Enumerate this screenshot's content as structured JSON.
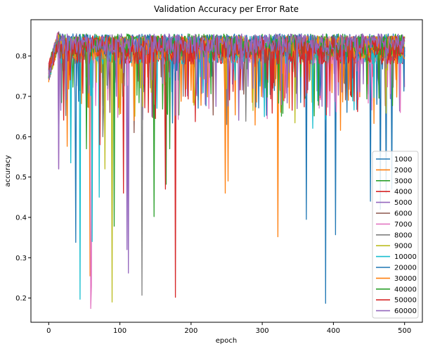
{
  "chart_data": {
    "type": "line",
    "title": "Validation Accuracy per Error Rate",
    "xlabel": "epoch",
    "ylabel": "accuracy",
    "xlim": [
      -25,
      525
    ],
    "ylim": [
      0.14,
      0.89
    ],
    "xticks": [
      0,
      100,
      200,
      300,
      400,
      500
    ],
    "yticks": [
      0.2,
      0.3,
      0.4,
      0.5,
      0.6,
      0.7,
      0.8
    ],
    "grid": false,
    "legend_position": "lower-right",
    "epochs": 500,
    "series": [
      {
        "name": "1000",
        "color": "#1f77b4",
        "base": 0.83,
        "noise": 0.025,
        "dips": [
          [
            362,
            0.395
          ],
          [
            389,
            0.187
          ],
          [
            403,
            0.357
          ],
          [
            452,
            0.44
          ],
          [
            466,
            0.42
          ],
          [
            474,
            0.46
          ],
          [
            482,
            0.47
          ]
        ]
      },
      {
        "name": "2000",
        "color": "#ff7f0e",
        "base": 0.815,
        "noise": 0.035,
        "dips": [
          [
            58,
            0.255
          ],
          [
            248,
            0.46
          ],
          [
            252,
            0.465
          ],
          [
            322,
            0.352
          ],
          [
            252,
            0.49
          ]
        ]
      },
      {
        "name": "3000",
        "color": "#2ca02c",
        "base": 0.825,
        "noise": 0.03,
        "dips": [
          [
            148,
            0.402
          ],
          [
            165,
            0.482
          ],
          [
            170,
            0.57
          ]
        ]
      },
      {
        "name": "4000",
        "color": "#d62728",
        "base": 0.815,
        "noise": 0.035,
        "dips": [
          [
            178,
            0.202
          ],
          [
            105,
            0.46
          ],
          [
            164,
            0.47
          ]
        ]
      },
      {
        "name": "5000",
        "color": "#9467bd",
        "base": 0.825,
        "noise": 0.03,
        "dips": [
          [
            110,
            0.32
          ],
          [
            112,
            0.262
          ],
          [
            145,
            0.65
          ]
        ]
      },
      {
        "name": "6000",
        "color": "#8c564b",
        "base": 0.82,
        "noise": 0.03,
        "dips": [
          [
            86,
            0.66
          ],
          [
            120,
            0.61
          ]
        ]
      },
      {
        "name": "7000",
        "color": "#e377c2",
        "base": 0.815,
        "noise": 0.035,
        "dips": [
          [
            14,
            0.52
          ],
          [
            59,
            0.174
          ],
          [
            60,
            0.23
          ]
        ]
      },
      {
        "name": "8000",
        "color": "#7f7f7f",
        "base": 0.82,
        "noise": 0.03,
        "dips": [
          [
            131,
            0.207
          ],
          [
            76,
            0.6
          ]
        ]
      },
      {
        "name": "9000",
        "color": "#bcbd22",
        "base": 0.82,
        "noise": 0.03,
        "dips": [
          [
            89,
            0.19
          ],
          [
            79,
            0.52
          ],
          [
            144,
            0.71
          ]
        ]
      },
      {
        "name": "10000",
        "color": "#17becf",
        "base": 0.815,
        "noise": 0.035,
        "dips": [
          [
            44,
            0.197
          ],
          [
            31,
            0.535
          ],
          [
            61,
            0.34
          ],
          [
            71,
            0.45
          ]
        ]
      },
      {
        "name": "20000",
        "color": "#1f77b4",
        "base": 0.825,
        "noise": 0.028,
        "dips": [
          [
            38,
            0.338
          ],
          [
            92,
            0.6
          ]
        ]
      },
      {
        "name": "30000",
        "color": "#ff7f0e",
        "base": 0.82,
        "noise": 0.03,
        "dips": [
          [
            26,
            0.576
          ],
          [
            120,
            0.64
          ]
        ]
      },
      {
        "name": "40000",
        "color": "#2ca02c",
        "base": 0.825,
        "noise": 0.028,
        "dips": [
          [
            92,
            0.378
          ],
          [
            53,
            0.57
          ]
        ]
      },
      {
        "name": "50000",
        "color": "#d62728",
        "base": 0.815,
        "noise": 0.035,
        "dips": [
          [
            72,
            0.58
          ],
          [
            140,
            0.66
          ]
        ]
      },
      {
        "name": "60000",
        "color": "#9467bd",
        "base": 0.83,
        "noise": 0.025,
        "dips": [
          [
            14,
            0.52
          ],
          [
            95,
            0.7
          ]
        ]
      }
    ]
  }
}
